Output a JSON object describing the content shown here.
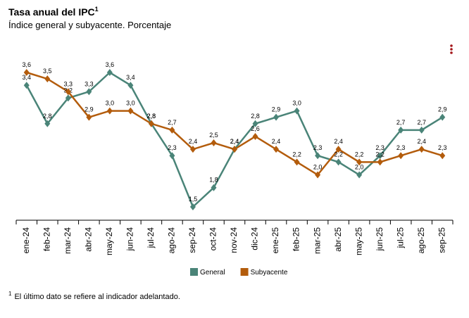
{
  "chart_data": {
    "type": "line",
    "title": "Tasa anual del IPC",
    "title_note": "1",
    "subtitle": "Índice general y subyacente. Porcentaje",
    "categories": [
      "ene-24",
      "feb-24",
      "mar-24",
      "abr-24",
      "may-24",
      "jun-24",
      "jul-24",
      "ago-24",
      "sep-24",
      "oct-24",
      "nov-24",
      "dic-24",
      "ene-25",
      "feb-25",
      "mar-25",
      "abr-25",
      "may-25",
      "jun-25",
      "jul-25",
      "ago-25",
      "sep-25"
    ],
    "series": [
      {
        "name": "General",
        "color": "#4a8478",
        "values": [
          3.4,
          2.8,
          3.2,
          3.3,
          3.6,
          3.4,
          2.8,
          2.3,
          1.5,
          1.8,
          2.4,
          2.8,
          2.9,
          3.0,
          2.3,
          2.2,
          2.0,
          2.3,
          2.7,
          2.7,
          2.9
        ],
        "value_labels": [
          "3,4",
          "2,8",
          "3,2",
          "3,3",
          "3,6",
          "3,4",
          "2,8",
          "2,3",
          "1,5",
          "1,8",
          "2,4",
          "2,8",
          "2,9",
          "3,0",
          "2,3",
          "2,2",
          "2,0",
          "2,3",
          "2,7",
          "2,7",
          "2,9"
        ]
      },
      {
        "name": "Subyacente",
        "color": "#b35c0c",
        "values": [
          3.6,
          3.5,
          3.3,
          2.9,
          3.0,
          3.0,
          2.8,
          2.7,
          2.4,
          2.5,
          2.4,
          2.6,
          2.4,
          2.2,
          2.0,
          2.4,
          2.2,
          2.2,
          2.3,
          2.4,
          2.3
        ],
        "value_labels": [
          "3,6",
          "3,5",
          "3,3",
          "2,9",
          "3,0",
          "3,0",
          "2,8",
          "2,7",
          "2,4",
          "2,5",
          "2,4",
          "2,6",
          "2,4",
          "2,2",
          "2,0",
          "2,4",
          "2,2",
          "2,2",
          "2,3",
          "2,4",
          "2,3"
        ]
      }
    ],
    "legend": "bottom",
    "footnote_mark": "1",
    "footnote": "El último dato se refiere al indicador adelantado."
  }
}
